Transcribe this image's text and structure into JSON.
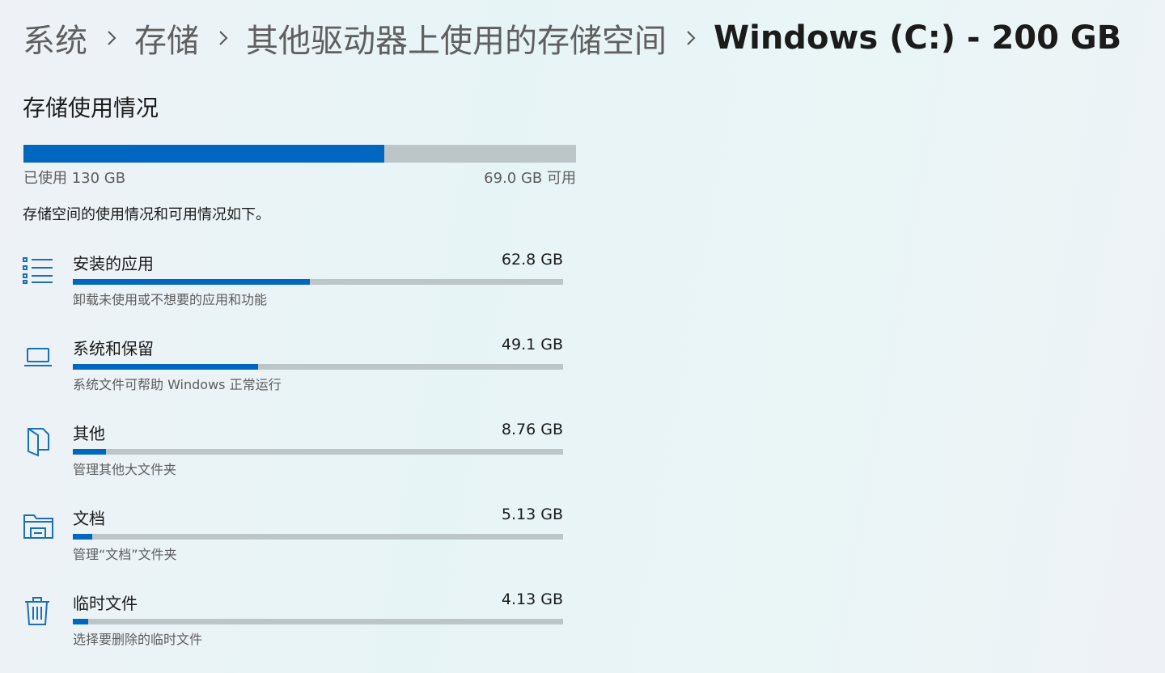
{
  "breadcrumb": [
    "系统",
    "存储",
    "其他驱动器上使用的存储空间",
    "Windows (C:) - 200 GB"
  ],
  "section_title": "存储使用情况",
  "usage": {
    "used": {
      "value": 130,
      "label": "已使用 130 GB"
    },
    "free": {
      "value": 69.0,
      "label": "69.0 GB 可用"
    }
  },
  "description": "存储空间的使用情况和可用情况如下。",
  "items": [
    {
      "title": "安装的应用",
      "size": {
        "value": 62.8,
        "label": "62.8 GB"
      },
      "subtitle": "卸载未使用或不想要的应用和功能"
    },
    {
      "title": "系统和保留",
      "size": {
        "value": 49.1,
        "label": "49.1 GB"
      },
      "subtitle": "系统文件可帮助 Windows 正常运行"
    },
    {
      "title": "其他",
      "size": {
        "value": 8.76,
        "label": "8.76 GB"
      },
      "subtitle": "管理其他大文件夹"
    },
    {
      "title": "文档",
      "size": {
        "value": 5.13,
        "label": "5.13 GB"
      },
      "subtitle": "管理“文档”文件夹"
    },
    {
      "title": "临时文件",
      "size": {
        "value": 4.13,
        "label": "4.13 GB"
      },
      "subtitle": "选择要删除的临时文件"
    }
  ]
}
